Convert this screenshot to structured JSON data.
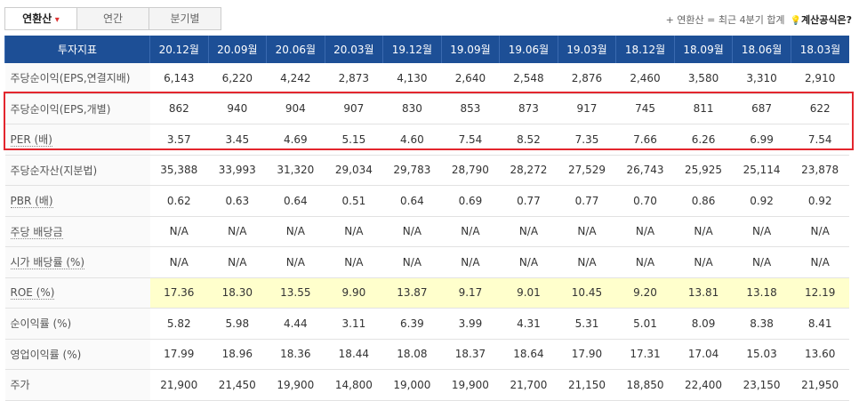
{
  "header": {
    "tabs": [
      "연환산",
      "연간",
      "분기별"
    ],
    "note": "+ 연환산 = 최근 4분기 합계",
    "formula_link": "계산공식은?"
  },
  "table": {
    "columns": [
      "투자지표",
      "20.12월",
      "20.09월",
      "20.06월",
      "20.03월",
      "19.12월",
      "19.09월",
      "19.06월",
      "19.03월",
      "18.12월",
      "18.09월",
      "18.06월",
      "18.03월"
    ],
    "rows": [
      {
        "label": "주당순이익(EPS,연결지배)",
        "values": [
          "6,143",
          "6,220",
          "4,242",
          "2,873",
          "4,130",
          "2,640",
          "2,548",
          "2,876",
          "2,460",
          "3,580",
          "3,310",
          "2,910"
        ]
      },
      {
        "label": "주당순이익(EPS,개별)",
        "values": [
          "862",
          "940",
          "904",
          "907",
          "830",
          "853",
          "873",
          "917",
          "745",
          "811",
          "687",
          "622"
        ]
      },
      {
        "label": "PER (배)",
        "values": [
          "3.57",
          "3.45",
          "4.69",
          "5.15",
          "4.60",
          "7.54",
          "8.52",
          "7.35",
          "7.66",
          "6.26",
          "6.99",
          "7.54"
        ]
      },
      {
        "label": "주당순자산(지분법)",
        "values": [
          "35,388",
          "33,993",
          "31,320",
          "29,034",
          "29,783",
          "28,790",
          "28,272",
          "27,529",
          "26,743",
          "25,925",
          "25,114",
          "23,878"
        ]
      },
      {
        "label": "PBR (배)",
        "values": [
          "0.62",
          "0.63",
          "0.64",
          "0.51",
          "0.64",
          "0.69",
          "0.77",
          "0.77",
          "0.70",
          "0.86",
          "0.92",
          "0.92"
        ]
      },
      {
        "label": "주당 배당금",
        "values": [
          "N/A",
          "N/A",
          "N/A",
          "N/A",
          "N/A",
          "N/A",
          "N/A",
          "N/A",
          "N/A",
          "N/A",
          "N/A",
          "N/A"
        ]
      },
      {
        "label": "시가 배당률 (%)",
        "values": [
          "N/A",
          "N/A",
          "N/A",
          "N/A",
          "N/A",
          "N/A",
          "N/A",
          "N/A",
          "N/A",
          "N/A",
          "N/A",
          "N/A"
        ]
      },
      {
        "label": "ROE (%)",
        "values": [
          "17.36",
          "18.30",
          "13.55",
          "9.90",
          "13.87",
          "9.17",
          "9.01",
          "10.45",
          "9.20",
          "13.81",
          "13.18",
          "12.19"
        ]
      },
      {
        "label": "순이익률 (%)",
        "values": [
          "5.82",
          "5.98",
          "4.44",
          "3.11",
          "6.39",
          "3.99",
          "4.31",
          "5.31",
          "5.01",
          "8.09",
          "8.38",
          "8.41"
        ]
      },
      {
        "label": "영업이익률 (%)",
        "values": [
          "17.99",
          "18.96",
          "18.36",
          "18.44",
          "18.08",
          "18.37",
          "18.64",
          "17.90",
          "17.31",
          "17.04",
          "15.03",
          "13.60"
        ]
      },
      {
        "label": "주가",
        "values": [
          "21,900",
          "21,450",
          "19,900",
          "14,800",
          "19,000",
          "19,900",
          "21,700",
          "21,150",
          "18,850",
          "22,400",
          "23,150",
          "21,950"
        ]
      }
    ]
  }
}
